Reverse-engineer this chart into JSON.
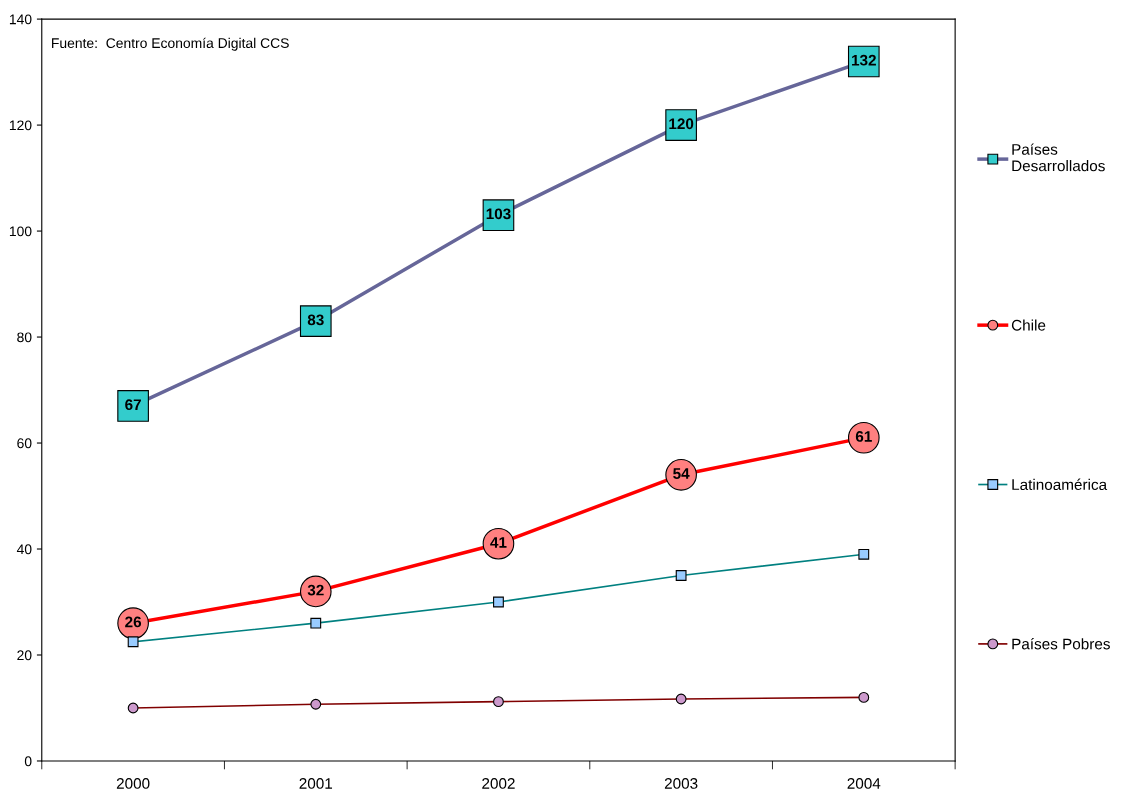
{
  "chart_data": {
    "type": "line",
    "categories": [
      "2000",
      "2001",
      "2002",
      "2003",
      "2004"
    ],
    "ylim": [
      0,
      140
    ],
    "yticks": [
      0,
      20,
      40,
      60,
      80,
      100,
      120,
      140
    ],
    "grid": false,
    "legend": "right",
    "annotations": [
      "Fuente:  Centro Economía Digital CCS"
    ],
    "series": [
      {
        "name": "Países\nDesarrollados",
        "color": "#666699",
        "marker": "square",
        "colors": [
          "#33cccc",
          "#33cccc",
          "#33cccc",
          "#33cccc",
          "#33cccc"
        ],
        "values": [
          67,
          83,
          103,
          120,
          132
        ],
        "value_labels": [
          "67",
          "83",
          "103",
          "120",
          "132"
        ]
      },
      {
        "name": "Chile",
        "color": "#ff0000",
        "marker": "circle",
        "colors": [
          "#ff8080",
          "#ff8080",
          "#ff8080",
          "#ff8080",
          "#ff8080"
        ],
        "values": [
          26,
          32,
          41,
          54,
          61
        ],
        "value_labels": [
          "26",
          "32",
          "41",
          "54",
          "61"
        ]
      },
      {
        "name": "Latinoamérica",
        "color": "#008080",
        "marker": "square",
        "colors": [
          "#99ccff",
          "#99ccff",
          "#99ccff",
          "#99ccff",
          "#99ccff"
        ],
        "values": [
          22.5,
          26,
          30,
          35,
          39
        ]
      },
      {
        "name": "Países Pobres",
        "color": "#800000",
        "marker": "circle",
        "colors": [
          "#cc99cc",
          "#cc99cc",
          "#cc99cc",
          "#cc99cc",
          "#cc99cc"
        ],
        "values": [
          10,
          10.7,
          11.2,
          11.7,
          12
        ]
      }
    ]
  }
}
